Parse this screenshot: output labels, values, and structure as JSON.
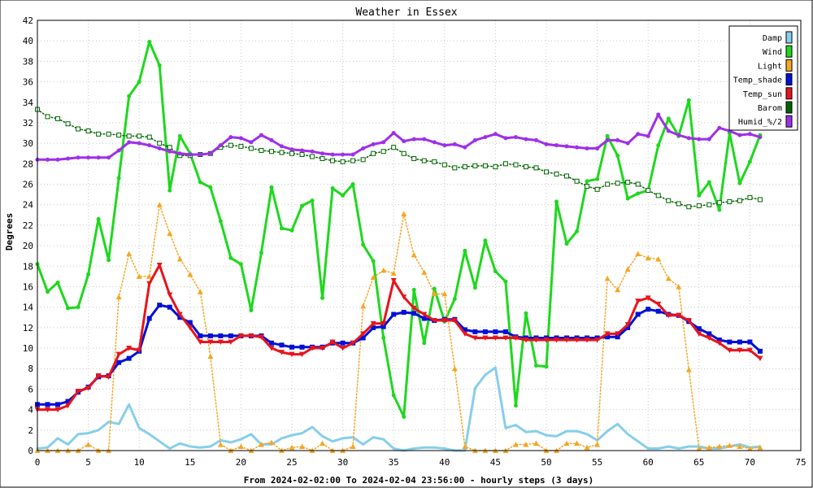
{
  "chart_data": {
    "type": "line",
    "title": "Weather in Essex",
    "xlabel": "From 2024-02-02:00 To 2024-02-04 23:56:00 - hourly steps (3 days)",
    "ylabel": "Degrees",
    "xlim": [
      0,
      75
    ],
    "ylim": [
      0,
      42
    ],
    "xticks": [
      0,
      5,
      10,
      15,
      20,
      25,
      30,
      35,
      40,
      45,
      50,
      55,
      60,
      65,
      70,
      75
    ],
    "yticks": [
      0,
      2,
      4,
      6,
      8,
      10,
      12,
      14,
      16,
      18,
      20,
      22,
      24,
      26,
      28,
      30,
      32,
      34,
      36,
      38,
      40,
      42
    ],
    "grid": true,
    "legend_position": "top-right",
    "series": [
      {
        "name": "Damp",
        "color": "#87ceeb",
        "style": "solid",
        "marker": "none",
        "values": [
          0.2,
          0.3,
          1.2,
          0.6,
          1.6,
          1.7,
          2.0,
          2.8,
          2.6,
          4.5,
          2.2,
          1.6,
          0.9,
          0.2,
          0.7,
          0.4,
          0.3,
          0.4,
          1.0,
          0.8,
          1.1,
          1.6,
          0.6,
          0.6,
          1.2,
          1.5,
          1.7,
          2.3,
          1.4,
          0.9,
          1.2,
          1.3,
          0.6,
          1.3,
          1.1,
          0.2,
          0.0,
          0.2,
          0.3,
          0.3,
          0.2,
          0.0,
          0.0,
          6.1,
          7.4,
          8.1,
          2.2,
          2.5,
          1.8,
          1.9,
          1.5,
          1.4,
          1.9,
          1.9,
          1.6,
          1.0,
          1.9,
          2.6,
          1.6,
          0.9,
          0.2,
          0.2,
          0.4,
          0.2,
          0.4,
          0.4,
          0.2,
          0.2,
          0.4,
          0.6,
          0.3,
          0.4
        ]
      },
      {
        "name": "Wind",
        "color": "#1ed81e",
        "style": "solid",
        "marker": "dot",
        "values": [
          18.2,
          15.5,
          16.4,
          13.9,
          14.0,
          17.2,
          22.6,
          18.6,
          26.6,
          34.6,
          36.0,
          39.9,
          37.6,
          25.4,
          30.7,
          29.0,
          26.2,
          25.7,
          22.4,
          18.8,
          18.2,
          13.7,
          19.3,
          25.7,
          21.7,
          21.5,
          23.9,
          24.4,
          14.9,
          25.6,
          24.9,
          26.0,
          20.1,
          18.5,
          11.0,
          5.4,
          3.3,
          15.7,
          10.5,
          15.8,
          12.6,
          14.8,
          19.5,
          15.9,
          20.5,
          17.5,
          16.5,
          4.4,
          13.4,
          8.3,
          8.2,
          24.3,
          20.2,
          21.4,
          26.3,
          26.5,
          30.7,
          28.8,
          24.6,
          25.1,
          25.4,
          29.8,
          32.4,
          30.7,
          34.2,
          24.9,
          26.2,
          23.5,
          31.0,
          26.1,
          28.2,
          30.8
        ]
      },
      {
        "name": "Light",
        "color": "#f5a623",
        "style": "dotted",
        "marker": "triangle",
        "values": [
          0.0,
          0.0,
          0.0,
          0.0,
          0.0,
          0.6,
          0.0,
          0.0,
          15.0,
          19.2,
          17.0,
          17.0,
          24.0,
          21.2,
          18.7,
          17.2,
          15.5,
          9.2,
          0.6,
          0.0,
          0.4,
          0.0,
          0.6,
          0.8,
          0.0,
          0.3,
          0.4,
          0.0,
          0.7,
          0.0,
          0.0,
          0.4,
          14.1,
          16.9,
          17.6,
          17.3,
          23.1,
          19.1,
          17.4,
          15.3,
          15.3,
          8.0,
          0.4,
          0.0,
          0.0,
          0.0,
          0.0,
          0.6,
          0.6,
          0.7,
          0.0,
          0.0,
          0.7,
          0.7,
          0.3,
          0.6,
          16.8,
          15.7,
          17.7,
          19.2,
          18.8,
          18.7,
          16.8,
          16.0,
          7.9,
          0.2,
          0.3,
          0.4,
          0.5,
          0.4,
          0.2,
          0.3
        ]
      },
      {
        "name": "Temp_shade",
        "color": "#0010d8",
        "style": "solid",
        "marker": "square",
        "values": [
          4.5,
          4.5,
          4.5,
          4.8,
          5.7,
          6.2,
          7.2,
          7.3,
          8.6,
          9.0,
          9.7,
          12.9,
          14.2,
          14.0,
          13.0,
          12.5,
          11.2,
          11.2,
          11.2,
          11.2,
          11.2,
          11.2,
          11.2,
          10.5,
          10.3,
          10.1,
          10.1,
          10.1,
          10.1,
          10.5,
          10.5,
          10.5,
          11.0,
          12.0,
          12.1,
          13.3,
          13.5,
          13.4,
          12.9,
          12.7,
          12.8,
          12.8,
          11.8,
          11.6,
          11.6,
          11.6,
          11.6,
          11.1,
          11.0,
          11.0,
          11.0,
          11.0,
          11.0,
          11.0,
          11.0,
          11.0,
          11.1,
          11.1,
          12.0,
          13.3,
          13.8,
          13.6,
          13.3,
          13.2,
          12.6,
          11.9,
          11.4,
          10.8,
          10.6,
          10.6,
          10.6,
          9.7
        ]
      },
      {
        "name": "Temp_sun",
        "color": "#e8141c",
        "style": "solid",
        "marker": "triangle-down",
        "values": [
          4.0,
          4.0,
          4.0,
          4.4,
          5.8,
          6.1,
          7.3,
          7.2,
          9.4,
          10.0,
          9.8,
          16.3,
          18.1,
          15.2,
          13.3,
          12.0,
          10.6,
          10.6,
          10.6,
          10.6,
          11.2,
          11.2,
          11.1,
          10.0,
          9.6,
          9.4,
          9.4,
          10.0,
          10.0,
          10.6,
          10.0,
          10.5,
          11.4,
          12.4,
          12.4,
          16.6,
          15.0,
          13.9,
          13.3,
          12.7,
          12.7,
          12.7,
          11.4,
          11.0,
          11.0,
          11.0,
          11.0,
          11.0,
          10.8,
          10.8,
          10.8,
          10.8,
          10.8,
          10.8,
          10.8,
          10.8,
          11.4,
          11.4,
          12.3,
          14.6,
          14.9,
          14.3,
          13.2,
          13.2,
          12.7,
          11.4,
          11.0,
          10.5,
          9.8,
          9.8,
          9.8,
          9.0
        ]
      },
      {
        "name": "Barom",
        "color": "#006400",
        "style": "dotted",
        "marker": "open-square",
        "values": [
          33.3,
          32.6,
          32.4,
          31.9,
          31.4,
          31.2,
          30.9,
          30.9,
          30.8,
          30.7,
          30.7,
          30.6,
          30.0,
          29.6,
          28.8,
          28.8,
          28.9,
          29.0,
          29.6,
          29.8,
          29.7,
          29.5,
          29.3,
          29.2,
          29.1,
          29.0,
          28.9,
          28.7,
          28.5,
          28.3,
          28.2,
          28.3,
          28.4,
          29.0,
          29.2,
          29.6,
          29.0,
          28.5,
          28.3,
          28.2,
          27.9,
          27.6,
          27.7,
          27.8,
          27.8,
          27.7,
          28.0,
          27.9,
          27.7,
          27.6,
          27.2,
          27.0,
          26.8,
          26.3,
          25.8,
          25.5,
          26.0,
          26.1,
          26.2,
          26.0,
          25.4,
          24.9,
          24.4,
          24.1,
          23.8,
          23.9,
          24.0,
          24.2,
          24.3,
          24.4,
          24.7,
          24.5
        ]
      },
      {
        "name": "Humid_%/2",
        "color": "#9d30e8",
        "style": "solid",
        "marker": "dot",
        "values": [
          28.4,
          28.4,
          28.4,
          28.5,
          28.6,
          28.6,
          28.6,
          28.6,
          29.3,
          30.1,
          30.0,
          29.8,
          29.5,
          29.2,
          29.0,
          28.9,
          28.9,
          29.0,
          29.8,
          30.6,
          30.5,
          30.1,
          30.8,
          30.3,
          29.7,
          29.4,
          29.3,
          29.2,
          29.0,
          28.9,
          28.9,
          28.9,
          29.5,
          29.9,
          30.1,
          31.0,
          30.2,
          30.4,
          30.4,
          30.1,
          29.8,
          29.9,
          29.6,
          30.3,
          30.6,
          30.9,
          30.5,
          30.6,
          30.4,
          30.3,
          29.9,
          29.8,
          29.7,
          29.6,
          29.5,
          29.5,
          30.3,
          30.3,
          30.0,
          30.9,
          30.7,
          32.8,
          31.2,
          30.8,
          30.5,
          30.4,
          30.4,
          31.5,
          31.2,
          30.8,
          30.9,
          30.6
        ]
      }
    ]
  }
}
